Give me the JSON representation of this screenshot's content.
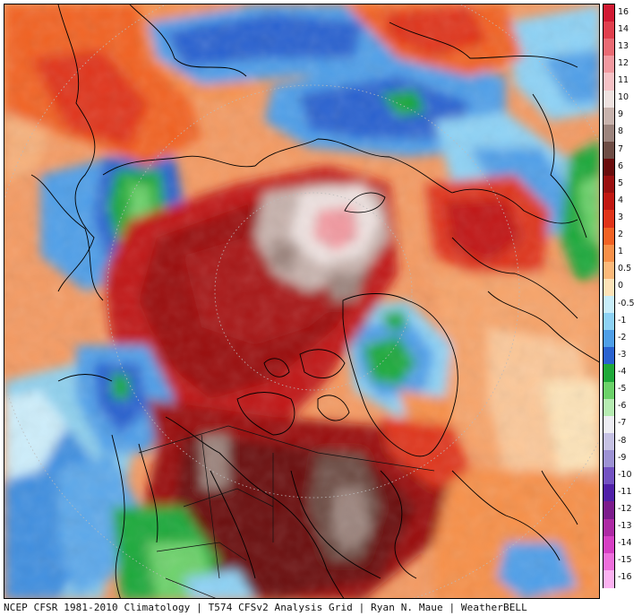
{
  "footer": {
    "credit": "NCEP CFSR 1981-2010 Climatology | T574 CFSv2 Analysis Grid | Ryan N. Maue | WeatherBELL"
  },
  "colorbar": {
    "levels": [
      {
        "label": "16",
        "color": "#d11a33"
      },
      {
        "label": "14",
        "color": "#e0404e"
      },
      {
        "label": "13",
        "color": "#ea6b74"
      },
      {
        "label": "12",
        "color": "#f299a0"
      },
      {
        "label": "11",
        "color": "#f6c2c6"
      },
      {
        "label": "10",
        "color": "#eee2e0"
      },
      {
        "label": "9",
        "color": "#c8b3ad"
      },
      {
        "label": "8",
        "color": "#9c847d"
      },
      {
        "label": "7",
        "color": "#6e4d45"
      },
      {
        "label": "6",
        "color": "#6a0d0d"
      },
      {
        "label": "5",
        "color": "#9a1010"
      },
      {
        "label": "4",
        "color": "#c11812"
      },
      {
        "label": "3",
        "color": "#e0341a"
      },
      {
        "label": "2",
        "color": "#f26224"
      },
      {
        "label": "1",
        "color": "#f79049"
      },
      {
        "label": "0.5",
        "color": "#fbb97a"
      },
      {
        "label": "0",
        "color": "#fde3b8"
      },
      {
        "label": "-0.5",
        "color": "#c8eefa"
      },
      {
        "label": "-1",
        "color": "#8dd2f5"
      },
      {
        "label": "-2",
        "color": "#4f9fe8"
      },
      {
        "label": "-3",
        "color": "#2a62d0"
      },
      {
        "label": "-4",
        "color": "#1fa93a"
      },
      {
        "label": "-5",
        "color": "#6cd26a"
      },
      {
        "label": "-6",
        "color": "#b6ecb2"
      },
      {
        "label": "-7",
        "color": "#eeeef4"
      },
      {
        "label": "-8",
        "color": "#c6c2e4"
      },
      {
        "label": "-9",
        "color": "#9d92d4"
      },
      {
        "label": "-10",
        "color": "#7352c2"
      },
      {
        "label": "-11",
        "color": "#5020a8"
      },
      {
        "label": "-12",
        "color": "#7c1c8c"
      },
      {
        "label": "-13",
        "color": "#ad2aa4"
      },
      {
        "label": "-14",
        "color": "#d640c4"
      },
      {
        "label": "-15",
        "color": "#ee70dc"
      },
      {
        "label": "-16",
        "color": "#fcb2f2"
      }
    ]
  }
}
